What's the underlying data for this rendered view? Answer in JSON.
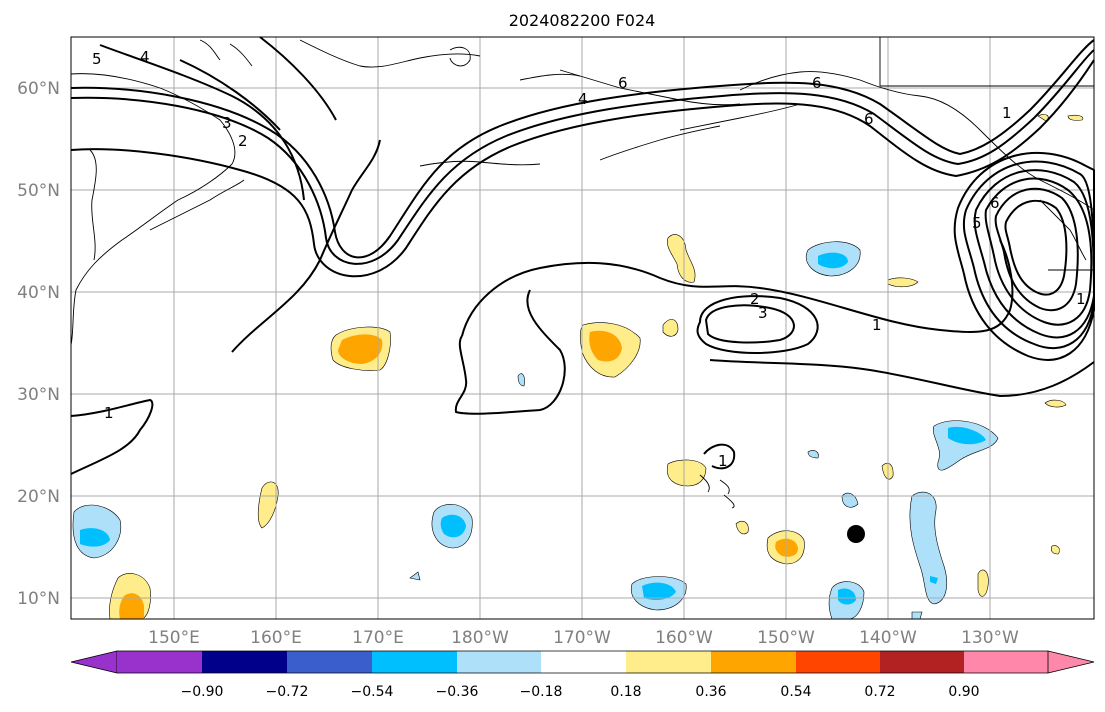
{
  "title": "2024082200 F024",
  "latitude_labels": [
    "60°N",
    "50°N",
    "40°N",
    "30°N",
    "20°N",
    "10°N"
  ],
  "longitude_labels": [
    "150°E",
    "160°E",
    "170°E",
    "180°W",
    "170°W",
    "160°W",
    "150°W",
    "140°W",
    "130°W"
  ],
  "colorbar": {
    "tick_labels": [
      "−0.90",
      "−0.72",
      "−0.54",
      "−0.36",
      "−0.18",
      "0.18",
      "0.36",
      "0.54",
      "0.72",
      "0.90"
    ],
    "colors": [
      "#9932cc",
      "#00008b",
      "#3a5fcd",
      "#00bfff",
      "#afe0fa",
      "#ffffff",
      "#ffec8b",
      "#ffa500",
      "#ff4500",
      "#b22222",
      "#ff88aa"
    ]
  },
  "contour_labels": [
    "5",
    "4",
    "3",
    "2",
    "6",
    "4",
    "6",
    "6",
    "1",
    "6",
    "5",
    "2",
    "3",
    "1",
    "1",
    "1",
    "1"
  ],
  "colors": {
    "grid": "#aaaaaa",
    "coast": "#000000",
    "positive_light": "#ffec8b",
    "positive_mid": "#ffa500",
    "negative_light": "#afe0fa",
    "negative_mid": "#00bfff",
    "axis_label": "#808080"
  },
  "markers": [
    {
      "name": "storm-center-dot",
      "lat": 16.3,
      "lon": -143.2
    }
  ]
}
